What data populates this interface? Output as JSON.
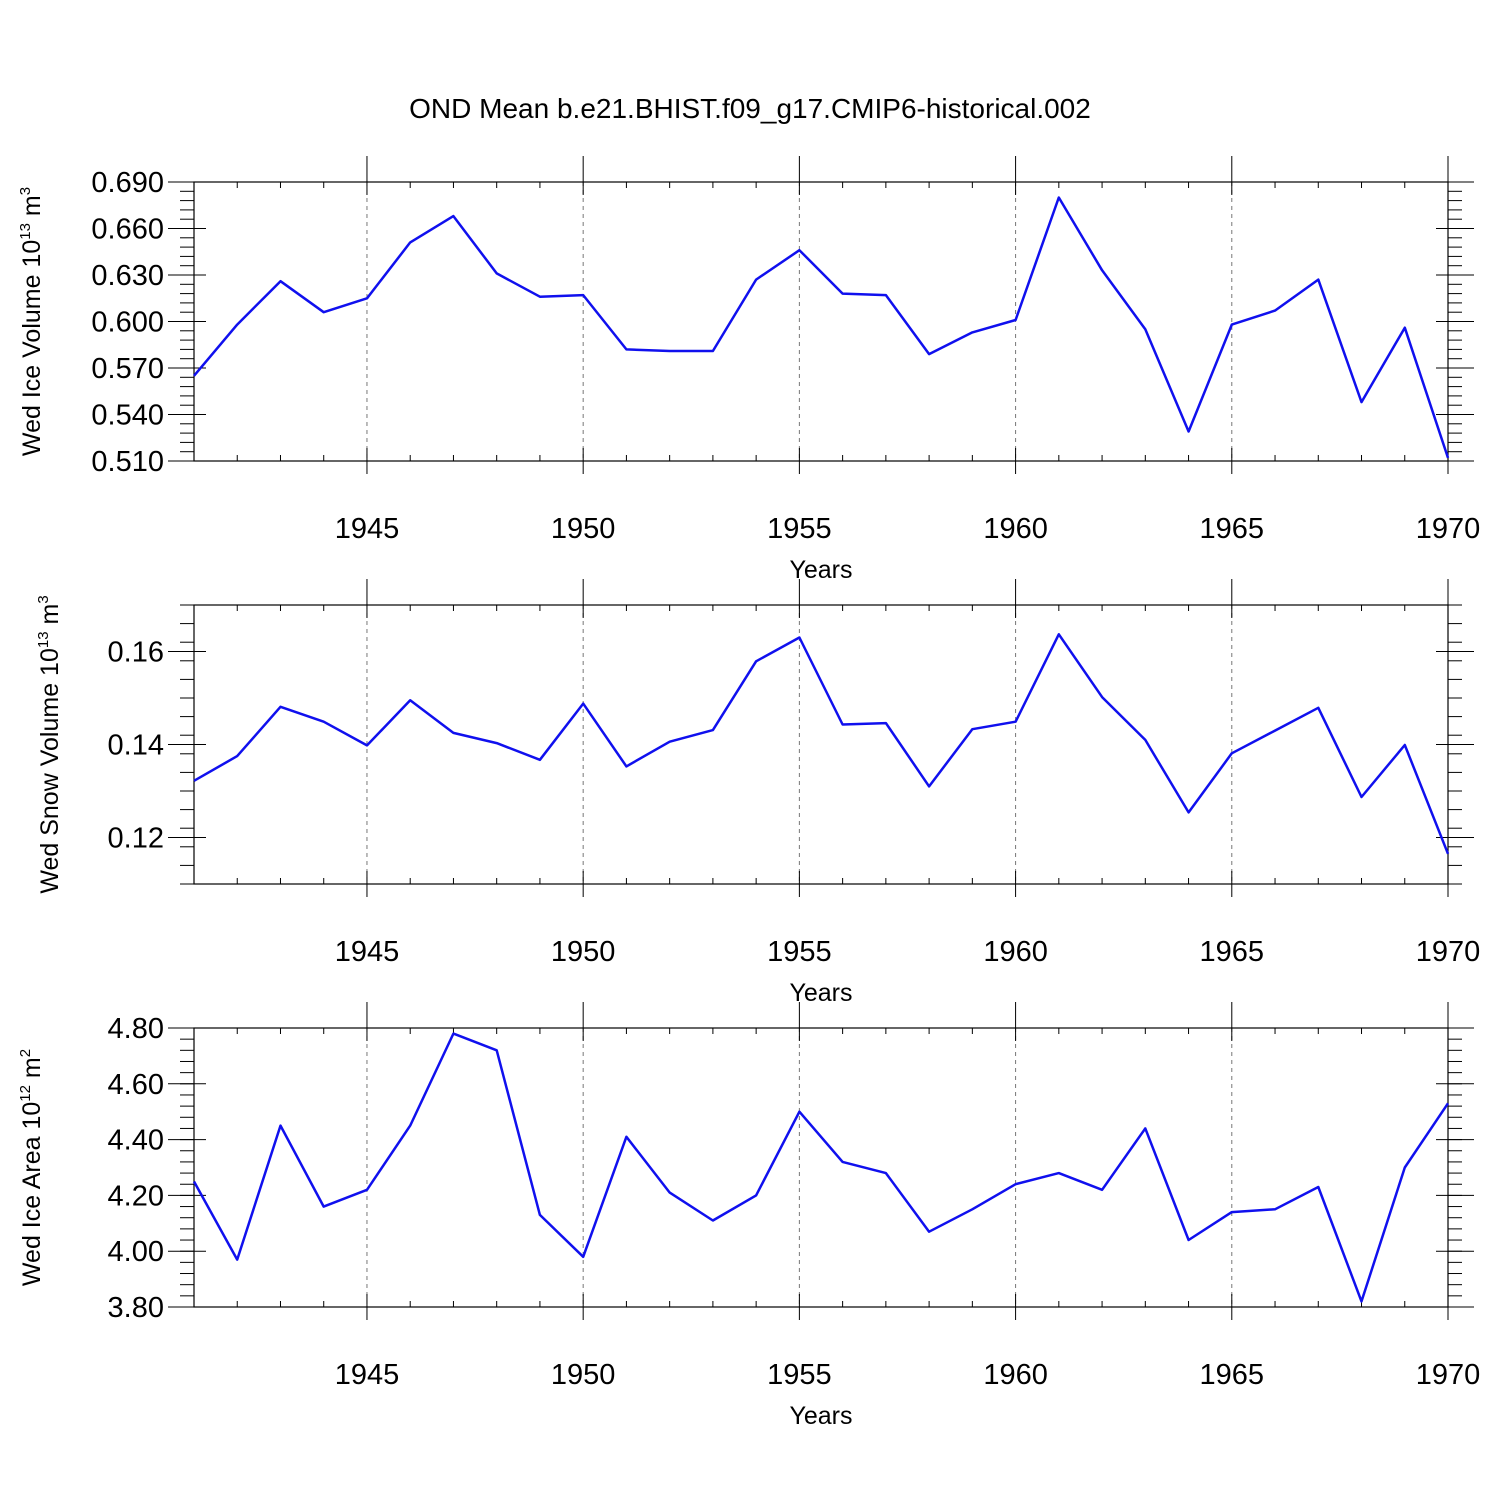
{
  "figure": {
    "title": "OND Mean b.e21.BHIST.f09_g17.CMIP6-historical.002"
  },
  "chart_data": [
    {
      "type": "line",
      "title": "",
      "xlabel": "Years",
      "ylabel": {
        "base": "Wed Ice Volume 10",
        "exp": "13",
        "unit": " m",
        "unit_exp": "3"
      },
      "xlim": [
        1941,
        1970
      ],
      "ylim": [
        0.51,
        0.69
      ],
      "ytick_values": [
        0.51,
        0.54,
        0.57,
        0.6,
        0.63,
        0.66,
        0.69
      ],
      "ytick_labels": [
        "0.510",
        "0.540",
        "0.570",
        "0.600",
        "0.630",
        "0.660",
        "0.690"
      ],
      "xtick_values": [
        1945,
        1950,
        1955,
        1960,
        1965,
        1970
      ],
      "xtick_labels": [
        "1945",
        "1950",
        "1955",
        "1960",
        "1965",
        "1970"
      ],
      "grid": "x-dashed",
      "color": "#1010ee",
      "x": [
        1941,
        1942,
        1943,
        1944,
        1945,
        1946,
        1947,
        1948,
        1949,
        1950,
        1951,
        1952,
        1953,
        1954,
        1955,
        1956,
        1957,
        1958,
        1959,
        1960,
        1961,
        1962,
        1963,
        1964,
        1965,
        1966,
        1967,
        1968,
        1969,
        1970
      ],
      "values": [
        0.565,
        0.598,
        0.626,
        0.606,
        0.615,
        0.651,
        0.668,
        0.631,
        0.616,
        0.617,
        0.582,
        0.581,
        0.581,
        0.627,
        0.646,
        0.618,
        0.617,
        0.579,
        0.593,
        0.601,
        0.68,
        0.633,
        0.595,
        0.529,
        0.598,
        0.607,
        0.627,
        0.548,
        0.596,
        0.512
      ]
    },
    {
      "type": "line",
      "title": "",
      "xlabel": "Years",
      "ylabel": {
        "base": "Wed Snow Volume 10",
        "exp": "13",
        "unit": " m",
        "unit_exp": "3"
      },
      "xlim": [
        1941,
        1970
      ],
      "ylim": [
        0.11,
        0.17
      ],
      "ytick_values": [
        0.12,
        0.14,
        0.16
      ],
      "ytick_labels": [
        "0.12",
        "0.14",
        "0.16"
      ],
      "xtick_values": [
        1945,
        1950,
        1955,
        1960,
        1965,
        1970
      ],
      "xtick_labels": [
        "1945",
        "1950",
        "1955",
        "1960",
        "1965",
        "1970"
      ],
      "grid": "x-dashed",
      "color": "#1010ee",
      "x": [
        1941,
        1942,
        1943,
        1944,
        1945,
        1946,
        1947,
        1948,
        1949,
        1950,
        1951,
        1952,
        1953,
        1954,
        1955,
        1956,
        1957,
        1958,
        1959,
        1960,
        1961,
        1962,
        1963,
        1964,
        1965,
        1966,
        1967,
        1968,
        1969,
        1970
      ],
      "values": [
        0.1322,
        0.1375,
        0.1481,
        0.1449,
        0.1398,
        0.1495,
        0.1425,
        0.1403,
        0.1367,
        0.1488,
        0.1353,
        0.1406,
        0.1431,
        0.1579,
        0.163,
        0.1443,
        0.1446,
        0.131,
        0.1433,
        0.1449,
        0.1637,
        0.1502,
        0.141,
        0.1254,
        0.1381,
        0.143,
        0.1479,
        0.1287,
        0.1399,
        0.1165
      ]
    },
    {
      "type": "line",
      "title": "",
      "xlabel": "Years",
      "ylabel": {
        "base": "Wed Ice Area 10",
        "exp": "12",
        "unit": " m",
        "unit_exp": "2"
      },
      "xlim": [
        1941,
        1970
      ],
      "ylim": [
        3.8,
        4.8
      ],
      "ytick_values": [
        3.8,
        4.0,
        4.2,
        4.4,
        4.6,
        4.8
      ],
      "ytick_labels": [
        "3.80",
        "4.00",
        "4.20",
        "4.40",
        "4.60",
        "4.80"
      ],
      "xtick_values": [
        1945,
        1950,
        1955,
        1960,
        1965,
        1970
      ],
      "xtick_labels": [
        "1945",
        "1950",
        "1955",
        "1960",
        "1965",
        "1970"
      ],
      "grid": "x-dashed",
      "color": "#1010ee",
      "x": [
        1941,
        1942,
        1943,
        1944,
        1945,
        1946,
        1947,
        1948,
        1949,
        1950,
        1951,
        1952,
        1953,
        1954,
        1955,
        1956,
        1957,
        1958,
        1959,
        1960,
        1961,
        1962,
        1963,
        1964,
        1965,
        1966,
        1967,
        1968,
        1969,
        1970
      ],
      "values": [
        4.25,
        3.97,
        4.45,
        4.16,
        4.22,
        4.45,
        4.78,
        4.72,
        4.13,
        3.98,
        4.41,
        4.21,
        4.11,
        4.2,
        4.5,
        4.32,
        4.28,
        4.07,
        4.15,
        4.24,
        4.28,
        4.22,
        4.44,
        4.04,
        4.14,
        4.15,
        4.23,
        3.82,
        4.3,
        4.53
      ]
    }
  ]
}
